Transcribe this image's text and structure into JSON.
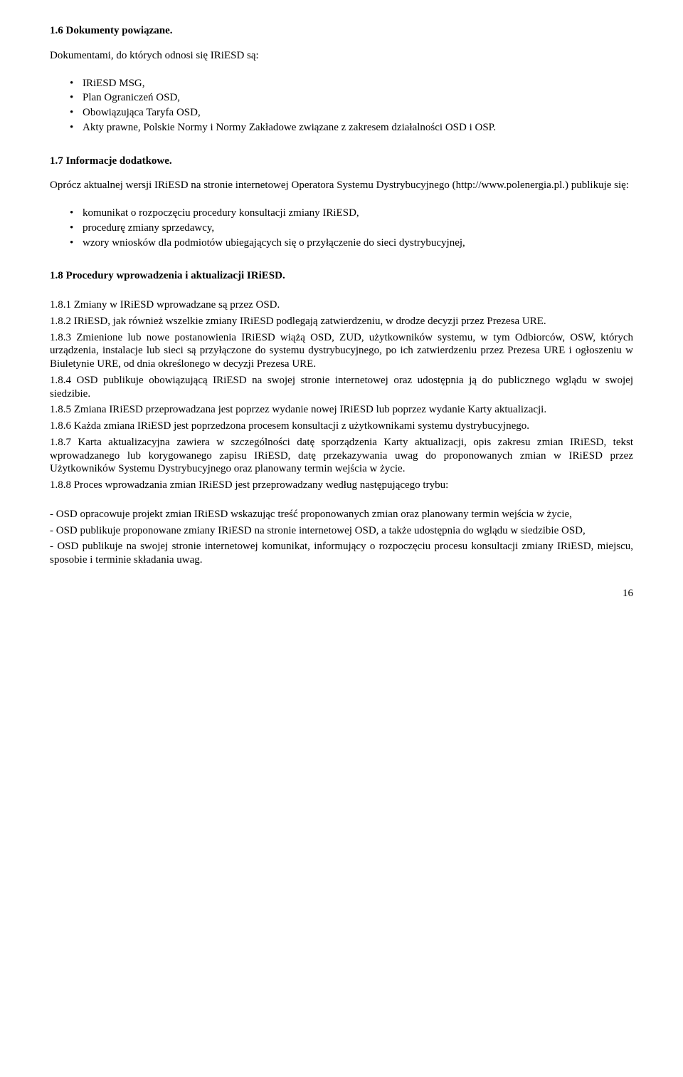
{
  "headings": {
    "h16": "1.6 Dokumenty powiązane.",
    "lead16": "Dokumentami, do których odnosi się IRiESD są:",
    "h17": "1.7 Informacje dodatkowe.",
    "lead17": "Oprócz aktualnej wersji IRiESD na stronie internetowej Operatora Systemu Dystrybucyjnego (http://www.polenergia.pl.) publikuje się:",
    "h18": "1.8 Procedury wprowadzenia i aktualizacji IRiESD."
  },
  "list16": [
    "IRiESD MSG,",
    "Plan Ograniczeń OSD,",
    "Obowiązująca Taryfa OSD,",
    "Akty prawne, Polskie Normy i Normy Zakładowe związane z zakresem działalności OSD i OSP."
  ],
  "list17": [
    "komunikat o rozpoczęciu procedury konsultacji zmiany IRiESD,",
    "procedurę zmiany sprzedawcy,",
    "wzory wniosków dla podmiotów ubiegających się o przyłączenie do sieci dystrybucyjnej,"
  ],
  "p18": {
    "p181": "1.8.1 Zmiany w IRiESD wprowadzane są przez OSD.",
    "p182": "1.8.2 IRiESD, jak również wszelkie zmiany IRiESD podlegają zatwierdzeniu, w drodze decyzji przez Prezesa URE.",
    "p183": "1.8.3 Zmienione lub nowe postanowienia IRiESD wiążą OSD, ZUD, użytkowników systemu, w tym Odbiorców, OSW, których urządzenia, instalacje lub sieci są przyłączone do systemu dystrybucyjnego, po ich zatwierdzeniu przez Prezesa URE i ogłoszeniu w Biuletynie URE, od dnia określonego w decyzji Prezesa URE.",
    "p184": "1.8.4 OSD publikuje obowiązującą IRiESD na swojej stronie internetowej oraz udostępnia ją do publicznego wglądu w swojej siedzibie.",
    "p185": "1.8.5 Zmiana IRiESD przeprowadzana jest poprzez wydanie nowej IRiESD lub poprzez wydanie Karty aktualizacji.",
    "p186": "1.8.6 Każda zmiana IRiESD jest poprzedzona procesem konsultacji z użytkownikami systemu dystrybucyjnego.",
    "p187": "1.8.7 Karta aktualizacyjna zawiera w szczególności datę sporządzenia Karty aktualizacji, opis zakresu zmian IRiESD, tekst wprowadzanego lub korygowanego zapisu IRiESD, datę przekazywania uwag do proponowanych zmian w IRiESD przez Użytkowników Systemu Dystrybucyjnego oraz planowany termin wejścia w życie.",
    "p188": "1.8.8 Proces wprowadzania zmian IRiESD jest przeprowadzany według następującego trybu:"
  },
  "dashList": [
    "- OSD opracowuje projekt zmian IRiESD wskazując treść proponowanych zmian oraz planowany termin wejścia w życie,",
    "- OSD publikuje proponowane zmiany IRiESD na stronie internetowej OSD, a także udostępnia do wglądu w siedzibie OSD,",
    "- OSD publikuje na swojej stronie internetowej komunikat, informujący o rozpoczęciu procesu konsultacji zmiany IRiESD, miejscu, sposobie i terminie składania uwag."
  ],
  "pageNumber": "16"
}
